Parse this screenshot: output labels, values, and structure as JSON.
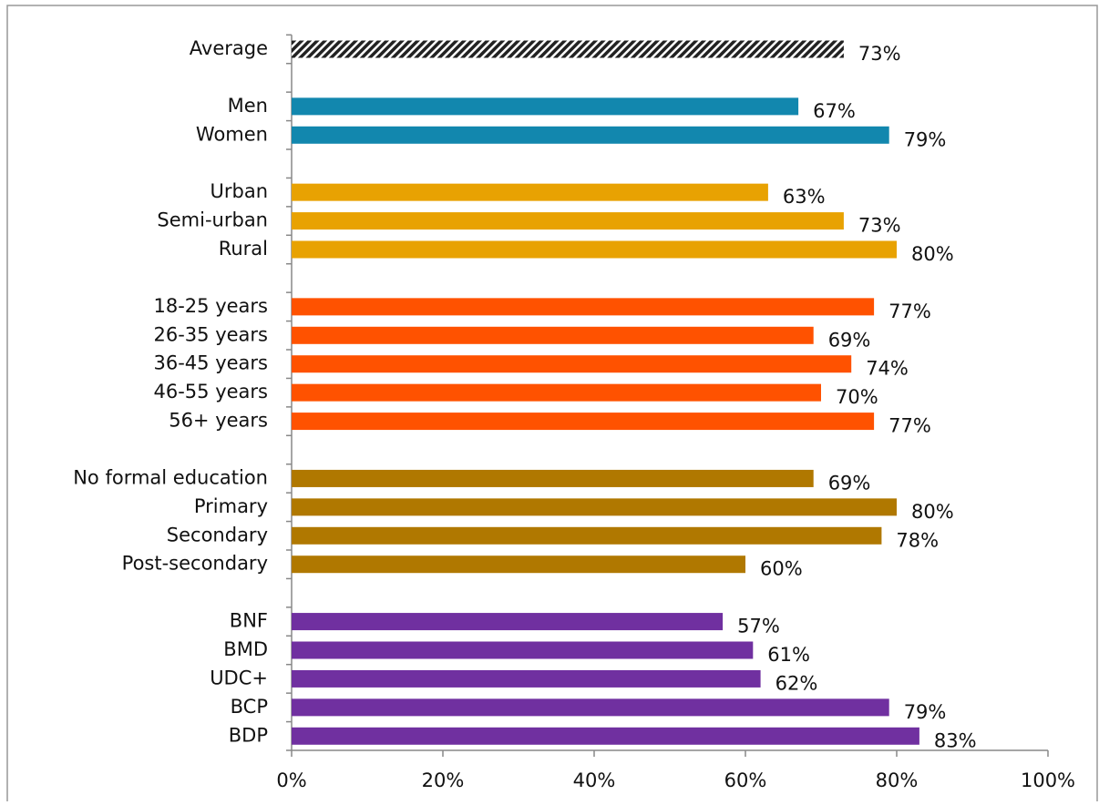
{
  "chart_data": {
    "type": "bar",
    "orientation": "horizontal",
    "categories": [
      "Average",
      null,
      "Men",
      "Women",
      null,
      "Urban",
      "Semi-urban",
      "Rural",
      null,
      "18-25 years",
      "26-35 years",
      "36-45 years",
      "46-55 years",
      "56+ years",
      null,
      "No formal education",
      "Primary",
      "Secondary",
      "Post-secondary",
      null,
      "BNF",
      "BMD",
      "UDC+",
      "BCP",
      "BDP"
    ],
    "values": [
      73,
      null,
      67,
      79,
      null,
      63,
      73,
      80,
      null,
      77,
      69,
      74,
      70,
      77,
      null,
      69,
      80,
      78,
      60,
      null,
      57,
      61,
      62,
      79,
      83
    ],
    "value_labels": [
      "73%",
      null,
      "67%",
      "79%",
      null,
      "63%",
      "73%",
      "80%",
      null,
      "77%",
      "69%",
      "74%",
      "70%",
      "77%",
      null,
      "69%",
      "80%",
      "78%",
      "60%",
      null,
      "57%",
      "61%",
      "62%",
      "79%",
      "83%"
    ],
    "colors": [
      "#222222",
      null,
      "#1287ae",
      "#1287ae",
      null,
      "#e8a202",
      "#e8a202",
      "#e8a202",
      null,
      "#ff5200",
      "#ff5200",
      "#ff5200",
      "#ff5200",
      "#ff5200",
      null,
      "#b07800",
      "#b07800",
      "#b07800",
      "#b07800",
      null,
      "#7030a0",
      "#7030a0",
      "#7030a0",
      "#7030a0",
      "#7030a0"
    ],
    "patterns": [
      "hatch",
      null,
      null,
      null,
      null,
      null,
      null,
      null,
      null,
      null,
      null,
      null,
      null,
      null,
      null,
      null,
      null,
      null,
      null,
      null,
      null,
      null,
      null,
      null,
      null
    ],
    "xlim": [
      0,
      100
    ],
    "xticks": [
      {
        "value": 0,
        "label": "0%"
      },
      {
        "value": 20,
        "label": "20%"
      },
      {
        "value": 40,
        "label": "40%"
      },
      {
        "value": 60,
        "label": "60%"
      },
      {
        "value": 80,
        "label": "80%"
      },
      {
        "value": 100,
        "label": "100%"
      }
    ],
    "grid": false
  }
}
